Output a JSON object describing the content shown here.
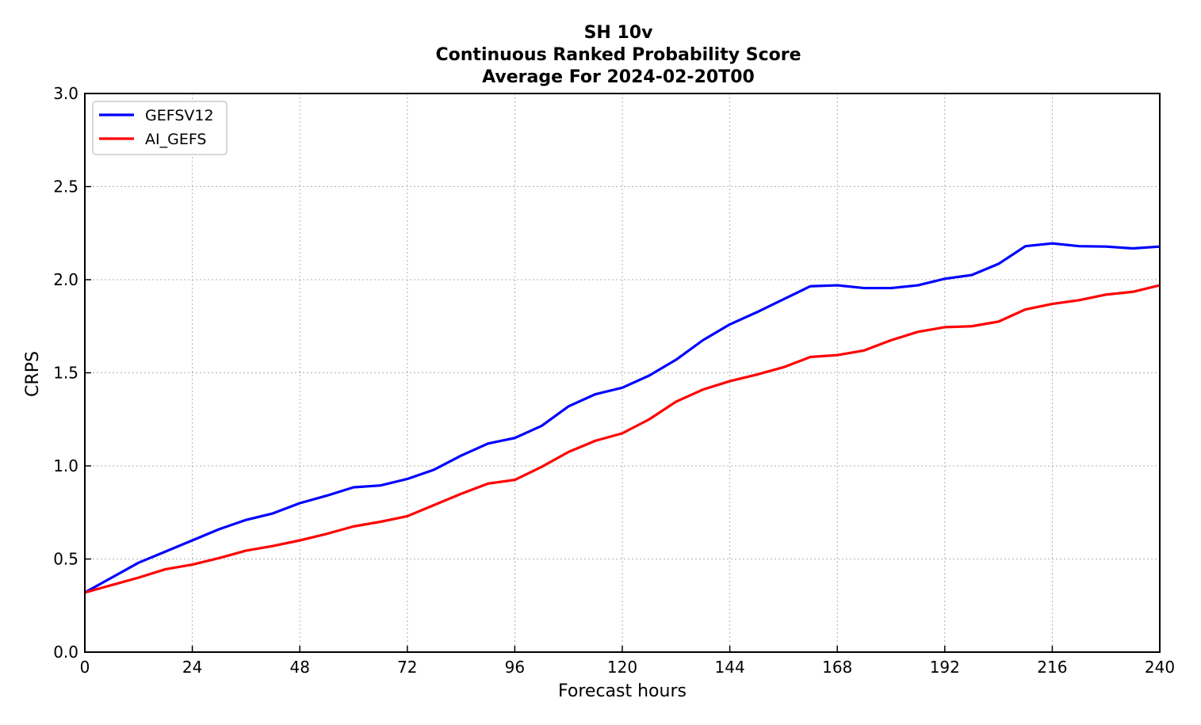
{
  "chart_data": {
    "type": "line",
    "title": [
      "SH 10v",
      "Continuous Ranked Probability Score",
      "Average For 2024-02-20T00"
    ],
    "xlabel": "Forecast hours",
    "ylabel": "CRPS",
    "xlim": [
      0,
      240
    ],
    "ylim": [
      0,
      3.0
    ],
    "xticks": [
      0,
      24,
      48,
      72,
      96,
      120,
      144,
      168,
      192,
      216,
      240
    ],
    "xtick_labels": [
      "0",
      "24",
      "48",
      "72",
      "96",
      "120",
      "144",
      "168",
      "192",
      "216",
      "240"
    ],
    "yticks": [
      0,
      0.5,
      1.0,
      1.5,
      2.0,
      2.5,
      3.0
    ],
    "ytick_labels": [
      "0.0",
      "0.5",
      "1.0",
      "1.5",
      "2.0",
      "2.5",
      "3.0"
    ],
    "grid": true,
    "legend_position": "top-left",
    "x": [
      0,
      6,
      12,
      18,
      24,
      30,
      36,
      42,
      48,
      54,
      60,
      66,
      72,
      78,
      84,
      90,
      96,
      102,
      108,
      114,
      120,
      126,
      132,
      138,
      144,
      150,
      156,
      162,
      168,
      174,
      180,
      186,
      192,
      198,
      204,
      210,
      216,
      222,
      228,
      234,
      240
    ],
    "series": [
      {
        "name": "GEFSV12",
        "color": "#0000ff",
        "values": [
          0.32,
          0.4,
          0.48,
          0.54,
          0.6,
          0.66,
          0.71,
          0.745,
          0.8,
          0.84,
          0.885,
          0.895,
          0.93,
          0.98,
          1.055,
          1.12,
          1.15,
          1.215,
          1.32,
          1.385,
          1.42,
          1.485,
          1.57,
          1.675,
          1.76,
          1.825,
          1.895,
          1.965,
          1.97,
          1.955,
          1.955,
          1.97,
          2.005,
          2.025,
          2.085,
          2.18,
          2.195,
          2.18,
          2.178,
          2.168,
          2.178
        ]
      },
      {
        "name": "AI_GEFS",
        "color": "#ff0000",
        "values": [
          0.32,
          0.36,
          0.4,
          0.445,
          0.47,
          0.505,
          0.545,
          0.57,
          0.6,
          0.635,
          0.675,
          0.7,
          0.73,
          0.79,
          0.85,
          0.905,
          0.925,
          0.995,
          1.075,
          1.135,
          1.175,
          1.25,
          1.345,
          1.41,
          1.455,
          1.49,
          1.53,
          1.585,
          1.595,
          1.62,
          1.675,
          1.72,
          1.745,
          1.75,
          1.775,
          1.84,
          1.87,
          1.89,
          1.92,
          1.935,
          1.97
        ]
      }
    ]
  }
}
